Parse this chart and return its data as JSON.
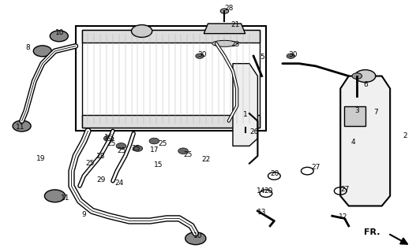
{
  "bg_color": "#ffffff",
  "line_color": "#000000",
  "fig_width": 5.27,
  "fig_height": 3.2,
  "dpi": 100
}
